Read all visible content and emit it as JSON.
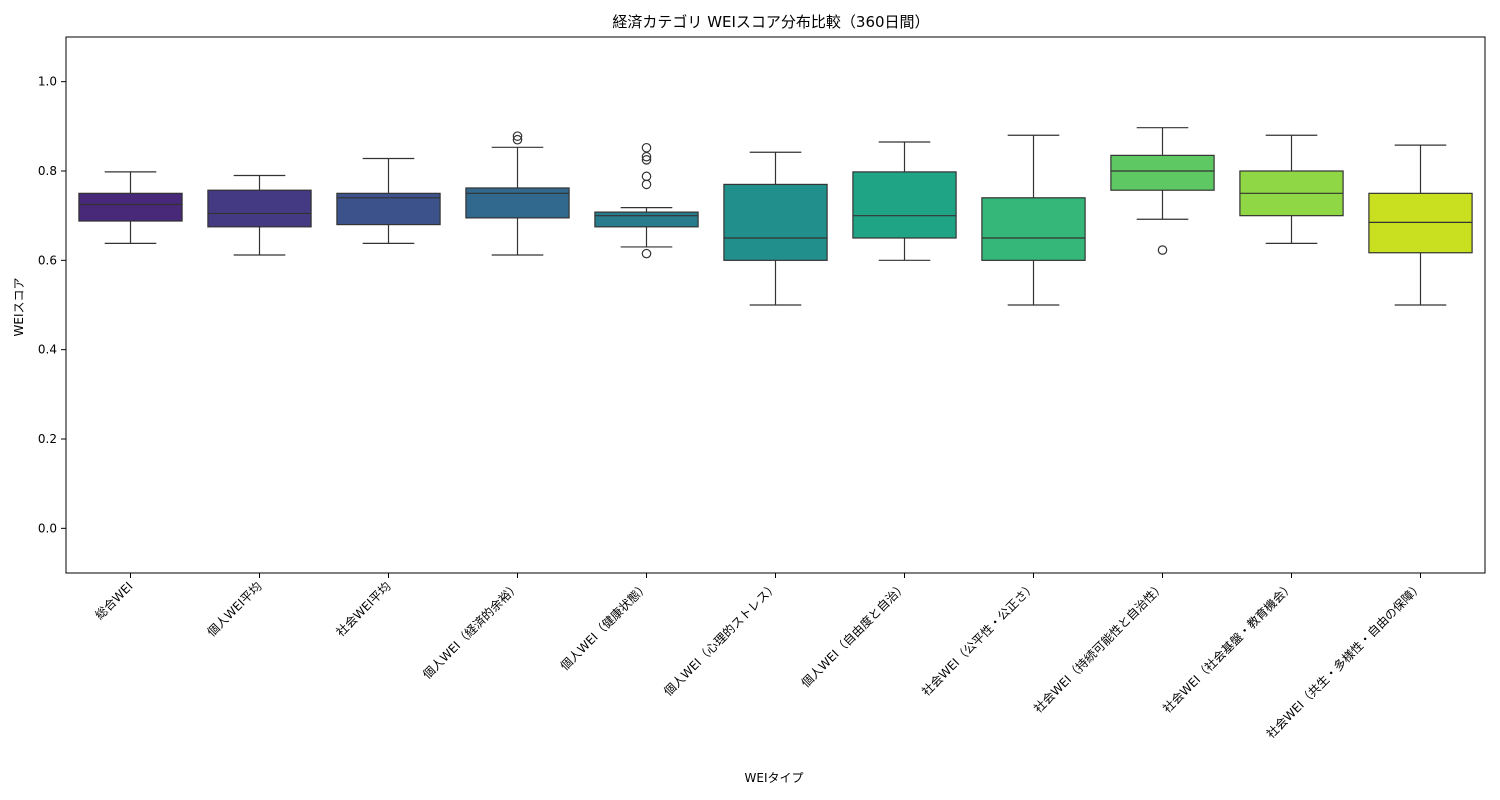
{
  "chart_data": {
    "type": "box",
    "title": "経済カテゴリ WEIスコア分布比較（360日間）",
    "xlabel": "WEIタイプ",
    "ylabel": "WEIスコア",
    "ylim": [
      -0.1,
      1.1
    ],
    "yticks": [
      0.0,
      0.2,
      0.4,
      0.6,
      0.8,
      1.0
    ],
    "ytick_labels": [
      "0.0",
      "0.2",
      "0.4",
      "0.6",
      "0.8",
      "1.0"
    ],
    "grid": false,
    "legend": "none",
    "categories": [
      "総合WEI",
      "個人WEI平均",
      "社会WEI平均",
      "個人WEI（経済的余裕）",
      "個人WEI（健康状態）",
      "個人WEI（心理的ストレス）",
      "個人WEI（自由度と自治）",
      "社会WEI（公平性・公正さ）",
      "社会WEI（持続可能性と自治性）",
      "社会WEI（社会基盤・教育機会）",
      "社会WEI（共生・多様性・自由の保障）"
    ],
    "boxes": [
      {
        "whislo": 0.638,
        "q1": 0.688,
        "med": 0.725,
        "q3": 0.75,
        "whishi": 0.798,
        "fliers": [],
        "color": "#482878"
      },
      {
        "whislo": 0.612,
        "q1": 0.675,
        "med": 0.705,
        "q3": 0.757,
        "whishi": 0.79,
        "fliers": [],
        "color": "#443983"
      },
      {
        "whislo": 0.638,
        "q1": 0.68,
        "med": 0.74,
        "q3": 0.75,
        "whishi": 0.828,
        "fliers": [],
        "color": "#3b528b"
      },
      {
        "whislo": 0.612,
        "q1": 0.695,
        "med": 0.75,
        "q3": 0.762,
        "whishi": 0.853,
        "fliers": [
          0.87,
          0.878
        ],
        "color": "#31688e"
      },
      {
        "whislo": 0.63,
        "q1": 0.675,
        "med": 0.7,
        "q3": 0.708,
        "whishi": 0.718,
        "fliers": [
          0.615,
          0.77,
          0.788,
          0.825,
          0.832,
          0.852
        ],
        "color": "#287c8e"
      },
      {
        "whislo": 0.5,
        "q1": 0.6,
        "med": 0.65,
        "q3": 0.77,
        "whishi": 0.842,
        "fliers": [],
        "color": "#21908d"
      },
      {
        "whislo": 0.6,
        "q1": 0.65,
        "med": 0.7,
        "q3": 0.798,
        "whishi": 0.865,
        "fliers": [],
        "color": "#20a486"
      },
      {
        "whislo": 0.5,
        "q1": 0.6,
        "med": 0.65,
        "q3": 0.74,
        "whishi": 0.88,
        "fliers": [],
        "color": "#35b779"
      },
      {
        "whislo": 0.692,
        "q1": 0.757,
        "med": 0.8,
        "q3": 0.835,
        "whishi": 0.897,
        "fliers": [
          0.623
        ],
        "color": "#5ec962"
      },
      {
        "whislo": 0.638,
        "q1": 0.7,
        "med": 0.75,
        "q3": 0.8,
        "whishi": 0.88,
        "fliers": [],
        "color": "#8fd744"
      },
      {
        "whislo": 0.5,
        "q1": 0.617,
        "med": 0.685,
        "q3": 0.75,
        "whishi": 0.858,
        "fliers": [],
        "color": "#c8e020"
      }
    ]
  }
}
